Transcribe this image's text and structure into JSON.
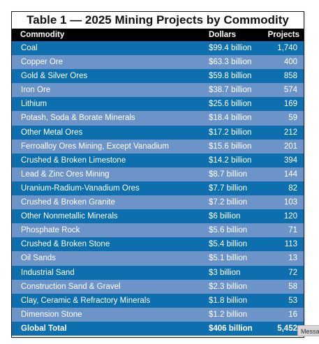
{
  "table": {
    "title": "Table 1 — 2025 Mining Projects by Commodity",
    "headers": {
      "commodity": "Commodity",
      "dollars": "Dollars",
      "projects": "Projects"
    },
    "rows": [
      {
        "commodity": "Coal",
        "dollars": "$99.4 billion",
        "projects": "1,740"
      },
      {
        "commodity": "Copper Ore",
        "dollars": "$63.3 billion",
        "projects": "400"
      },
      {
        "commodity": "Gold & Silver Ores",
        "dollars": "$59.8 billion",
        "projects": "858"
      },
      {
        "commodity": "Iron Ore",
        "dollars": "$38.7 billion",
        "projects": "574"
      },
      {
        "commodity": "Lithium",
        "dollars": "$25.6 billion",
        "projects": "169"
      },
      {
        "commodity": "Potash, Soda & Borate Minerals",
        "dollars": "$18.4 billion",
        "projects": "59"
      },
      {
        "commodity": "Other Metal Ores",
        "dollars": "$17.2 billion",
        "projects": "212"
      },
      {
        "commodity": "Ferroalloy Ores Mining, Except Vanadium",
        "dollars": "$15.6 billion",
        "projects": "201"
      },
      {
        "commodity": "Crushed & Broken Limestone",
        "dollars": "$14.2 billion",
        "projects": "394"
      },
      {
        "commodity": "Lead & Zinc Ores Mining",
        "dollars": "$8.7 billion",
        "projects": "144"
      },
      {
        "commodity": "Uranium-Radium-Vanadium Ores",
        "dollars": "$7.7 billion",
        "projects": "82"
      },
      {
        "commodity": "Crushed & Broken Granite",
        "dollars": "$7.2 billion",
        "projects": "103"
      },
      {
        "commodity": "Other Nonmetallic Minerals",
        "dollars": "$6 billion",
        "projects": "120"
      },
      {
        "commodity": "Phosphate Rock",
        "dollars": "$5.6 billion",
        "projects": "71"
      },
      {
        "commodity": "Crushed & Broken Stone",
        "dollars": "$5.4 billion",
        "projects": "113"
      },
      {
        "commodity": "Oil Sands",
        "dollars": "$5.1 billion",
        "projects": "13"
      },
      {
        "commodity": "Industrial Sand",
        "dollars": "$3 billion",
        "projects": "72"
      },
      {
        "commodity": "Construction Sand & Gravel",
        "dollars": "$2.3 billion",
        "projects": "58"
      },
      {
        "commodity": "Clay, Ceramic & Refractory Minerals",
        "dollars": "$1.8 billion",
        "projects": "53"
      },
      {
        "commodity": "Dimension Stone",
        "dollars": "$1.2 billion",
        "projects": "16"
      }
    ],
    "total": {
      "commodity": "Global Total",
      "dollars": "$406 billion",
      "projects": "5,452"
    }
  },
  "tooltip": {
    "text": "Messa"
  },
  "colors": {
    "row_dark": "#0e6fae",
    "row_light": "#6d94c9",
    "header_bg": "#000000"
  }
}
